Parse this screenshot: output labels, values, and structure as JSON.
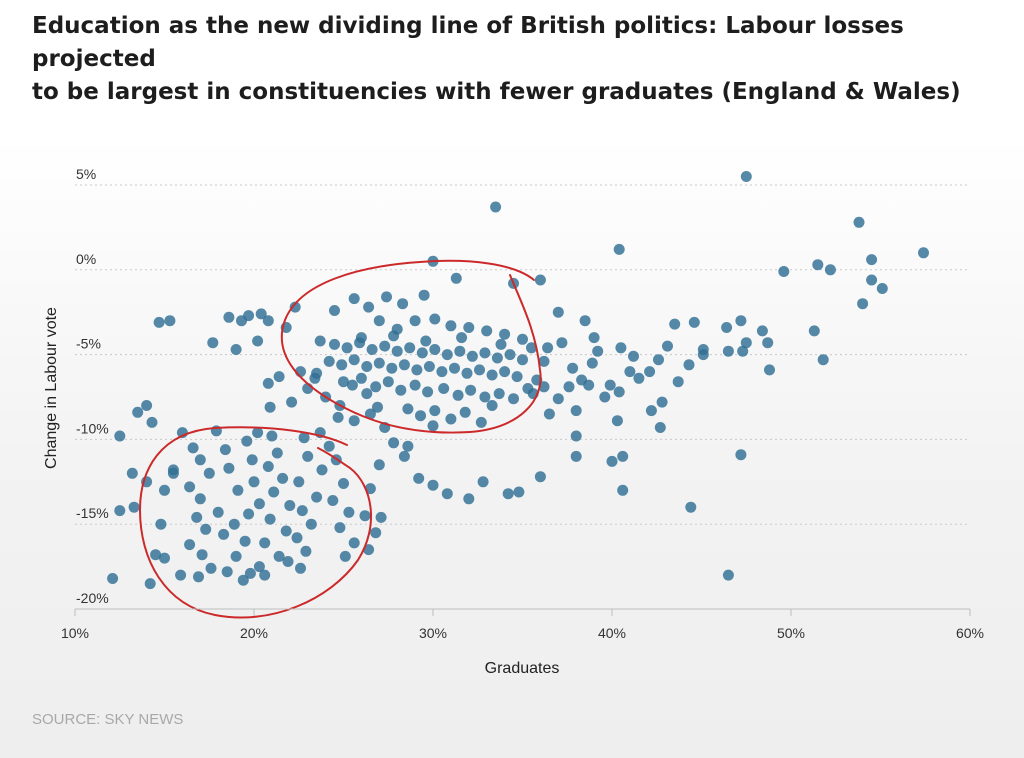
{
  "title_lines": [
    "Education as the new dividing line of British politics: Labour losses projected",
    "to be largest in constituencies with fewer graduates (England & Wales)"
  ],
  "source": "SOURCE: SKY NEWS",
  "chart_data": {
    "type": "scatter",
    "title": "Education as the new dividing line of British politics: Labour losses projected to be largest in constituencies with fewer graduates (England & Wales)",
    "xlabel": "Graduates",
    "ylabel": "Change in Labour vote",
    "xlim": [
      10,
      60
    ],
    "ylim": [
      -20,
      5
    ],
    "x_ticks": [
      "10%",
      "20%",
      "30%",
      "40%",
      "50%",
      "60%"
    ],
    "x_tick_values": [
      10,
      20,
      30,
      40,
      50,
      60
    ],
    "y_ticks": [
      "5%",
      "0%",
      "-5%",
      "-10%",
      "-15%",
      "-20%"
    ],
    "y_tick_values": [
      5,
      0,
      -5,
      -10,
      -15,
      -20
    ],
    "grid": true,
    "point_color": "#2f6f94",
    "annotation_color": "#cc2a2a",
    "points": [
      [
        47.5,
        5.5
      ],
      [
        33.5,
        3.7
      ],
      [
        53.8,
        2.8
      ],
      [
        40.4,
        1.2
      ],
      [
        57.4,
        1.0
      ],
      [
        54.5,
        0.6
      ],
      [
        51.5,
        0.3
      ],
      [
        52.2,
        0.0
      ],
      [
        49.6,
        -0.1
      ],
      [
        54.5,
        -0.6
      ],
      [
        55.1,
        -1.1
      ],
      [
        54.0,
        -2.0
      ],
      [
        30.0,
        0.5
      ],
      [
        36.0,
        -0.6
      ],
      [
        34.5,
        -0.8
      ],
      [
        12.5,
        -9.8
      ],
      [
        13.2,
        -12.0
      ],
      [
        12.5,
        -14.2
      ],
      [
        12.1,
        -18.2
      ],
      [
        14.2,
        -18.5
      ],
      [
        14.5,
        -16.8
      ],
      [
        13.3,
        -14.0
      ],
      [
        14.0,
        -12.5
      ],
      [
        15.0,
        -13.0
      ],
      [
        15.5,
        -11.8
      ],
      [
        14.8,
        -15.0
      ],
      [
        15.0,
        -17.0
      ],
      [
        15.9,
        -18.0
      ],
      [
        15.5,
        -12.0
      ],
      [
        14.7,
        -3.1
      ],
      [
        15.3,
        -3.0
      ],
      [
        13.5,
        -8.4
      ],
      [
        14.0,
        -8.0
      ],
      [
        14.3,
        -9.0
      ],
      [
        16.0,
        -9.6
      ],
      [
        16.6,
        -10.5
      ],
      [
        17.0,
        -11.2
      ],
      [
        17.5,
        -12.0
      ],
      [
        16.4,
        -12.8
      ],
      [
        17.0,
        -13.5
      ],
      [
        18.0,
        -14.3
      ],
      [
        16.8,
        -14.6
      ],
      [
        17.3,
        -15.3
      ],
      [
        18.3,
        -15.6
      ],
      [
        16.4,
        -16.2
      ],
      [
        17.1,
        -16.8
      ],
      [
        17.6,
        -17.6
      ],
      [
        16.9,
        -18.1
      ],
      [
        18.5,
        -17.8
      ],
      [
        19.4,
        -18.3
      ],
      [
        19.8,
        -17.9
      ],
      [
        19.0,
        -16.9
      ],
      [
        19.5,
        -16.0
      ],
      [
        18.9,
        -15.0
      ],
      [
        19.7,
        -14.4
      ],
      [
        20.3,
        -13.8
      ],
      [
        19.1,
        -13.0
      ],
      [
        20.0,
        -12.5
      ],
      [
        18.6,
        -11.7
      ],
      [
        19.9,
        -11.2
      ],
      [
        18.4,
        -10.6
      ],
      [
        19.6,
        -10.1
      ],
      [
        20.2,
        -9.6
      ],
      [
        17.9,
        -9.5
      ],
      [
        21.0,
        -9.8
      ],
      [
        21.3,
        -10.8
      ],
      [
        20.8,
        -11.6
      ],
      [
        21.6,
        -12.3
      ],
      [
        21.1,
        -13.1
      ],
      [
        22.0,
        -13.9
      ],
      [
        20.9,
        -14.7
      ],
      [
        21.8,
        -15.4
      ],
      [
        20.6,
        -16.1
      ],
      [
        21.4,
        -16.9
      ],
      [
        20.3,
        -17.5
      ],
      [
        21.9,
        -17.2
      ],
      [
        20.6,
        -18.0
      ],
      [
        22.6,
        -17.6
      ],
      [
        22.9,
        -16.6
      ],
      [
        22.4,
        -15.8
      ],
      [
        23.2,
        -15.0
      ],
      [
        22.7,
        -14.2
      ],
      [
        23.5,
        -13.4
      ],
      [
        22.5,
        -12.5
      ],
      [
        23.8,
        -11.8
      ],
      [
        23.0,
        -11.0
      ],
      [
        24.2,
        -10.4
      ],
      [
        22.8,
        -9.9
      ],
      [
        23.7,
        -9.6
      ],
      [
        24.6,
        -11.2
      ],
      [
        25.0,
        -12.6
      ],
      [
        24.4,
        -13.6
      ],
      [
        25.3,
        -14.3
      ],
      [
        24.8,
        -15.2
      ],
      [
        25.6,
        -16.1
      ],
      [
        25.1,
        -16.9
      ],
      [
        26.4,
        -16.5
      ],
      [
        26.8,
        -15.5
      ],
      [
        26.2,
        -14.5
      ],
      [
        27.1,
        -14.6
      ],
      [
        26.5,
        -12.9
      ],
      [
        17.7,
        -4.3
      ],
      [
        18.6,
        -2.8
      ],
      [
        19.3,
        -3.0
      ],
      [
        19.7,
        -2.7
      ],
      [
        20.4,
        -2.6
      ],
      [
        20.8,
        -3.0
      ],
      [
        20.2,
        -4.2
      ],
      [
        19.0,
        -4.7
      ],
      [
        21.8,
        -3.4
      ],
      [
        22.3,
        -2.2
      ],
      [
        21.4,
        -6.3
      ],
      [
        20.8,
        -6.7
      ],
      [
        22.6,
        -6.0
      ],
      [
        23.4,
        -6.4
      ],
      [
        23.0,
        -7.0
      ],
      [
        22.1,
        -7.8
      ],
      [
        20.9,
        -8.1
      ],
      [
        24.0,
        -7.5
      ],
      [
        24.8,
        -8.0
      ],
      [
        25.5,
        -6.8
      ],
      [
        26.3,
        -7.3
      ],
      [
        26.9,
        -8.1
      ],
      [
        27.3,
        -9.3
      ],
      [
        27.8,
        -10.2
      ],
      [
        28.4,
        -11.0
      ],
      [
        27.0,
        -11.5
      ],
      [
        29.2,
        -12.3
      ],
      [
        30.0,
        -12.7
      ],
      [
        30.8,
        -13.2
      ],
      [
        32.0,
        -13.5
      ],
      [
        32.8,
        -12.5
      ],
      [
        34.2,
        -13.2
      ],
      [
        34.8,
        -13.1
      ],
      [
        28.6,
        -10.4
      ],
      [
        33.3,
        -8.0
      ],
      [
        24.5,
        -2.4
      ],
      [
        25.6,
        -1.7
      ],
      [
        26.4,
        -2.2
      ],
      [
        27.4,
        -1.6
      ],
      [
        28.3,
        -2.0
      ],
      [
        29.5,
        -1.5
      ],
      [
        31.3,
        -0.5
      ],
      [
        27.0,
        -3.0
      ],
      [
        28.0,
        -3.5
      ],
      [
        29.0,
        -3.0
      ],
      [
        30.1,
        -2.9
      ],
      [
        31.0,
        -3.3
      ],
      [
        32.0,
        -3.4
      ],
      [
        33.0,
        -3.6
      ],
      [
        34.0,
        -3.8
      ],
      [
        35.0,
        -4.1
      ],
      [
        23.7,
        -4.2
      ],
      [
        24.5,
        -4.4
      ],
      [
        25.2,
        -4.6
      ],
      [
        25.9,
        -4.3
      ],
      [
        26.6,
        -4.7
      ],
      [
        27.3,
        -4.5
      ],
      [
        28.0,
        -4.8
      ],
      [
        28.7,
        -4.6
      ],
      [
        29.4,
        -4.9
      ],
      [
        30.1,
        -4.7
      ],
      [
        30.8,
        -5.0
      ],
      [
        31.5,
        -4.8
      ],
      [
        32.2,
        -5.1
      ],
      [
        32.9,
        -4.9
      ],
      [
        33.6,
        -5.2
      ],
      [
        34.3,
        -5.0
      ],
      [
        35.0,
        -5.3
      ],
      [
        24.2,
        -5.4
      ],
      [
        24.9,
        -5.6
      ],
      [
        25.6,
        -5.3
      ],
      [
        26.3,
        -5.7
      ],
      [
        27.0,
        -5.5
      ],
      [
        27.7,
        -5.8
      ],
      [
        28.4,
        -5.6
      ],
      [
        29.1,
        -5.9
      ],
      [
        29.8,
        -5.7
      ],
      [
        30.5,
        -6.0
      ],
      [
        31.2,
        -5.8
      ],
      [
        31.9,
        -6.1
      ],
      [
        32.6,
        -5.9
      ],
      [
        33.3,
        -6.2
      ],
      [
        34.0,
        -6.0
      ],
      [
        34.7,
        -6.3
      ],
      [
        23.5,
        -6.1
      ],
      [
        25.0,
        -6.6
      ],
      [
        26.0,
        -6.4
      ],
      [
        26.8,
        -6.9
      ],
      [
        27.5,
        -6.6
      ],
      [
        28.2,
        -7.1
      ],
      [
        29.0,
        -6.8
      ],
      [
        29.7,
        -7.2
      ],
      [
        30.6,
        -7.0
      ],
      [
        31.4,
        -7.4
      ],
      [
        32.1,
        -7.1
      ],
      [
        32.9,
        -7.5
      ],
      [
        33.7,
        -7.3
      ],
      [
        34.5,
        -7.6
      ],
      [
        35.3,
        -7.0
      ],
      [
        28.6,
        -8.2
      ],
      [
        29.3,
        -8.6
      ],
      [
        30.1,
        -8.3
      ],
      [
        31.0,
        -8.8
      ],
      [
        31.8,
        -8.4
      ],
      [
        32.7,
        -9.0
      ],
      [
        26.5,
        -8.5
      ],
      [
        25.6,
        -8.9
      ],
      [
        24.7,
        -8.7
      ],
      [
        30.0,
        -9.2
      ],
      [
        26.0,
        -4.0
      ],
      [
        27.8,
        -3.9
      ],
      [
        29.6,
        -4.2
      ],
      [
        31.6,
        -4.0
      ],
      [
        33.8,
        -4.4
      ],
      [
        35.5,
        -4.6
      ],
      [
        36.2,
        -5.4
      ],
      [
        35.8,
        -6.5
      ],
      [
        35.6,
        -7.3
      ],
      [
        36.2,
        -6.9
      ],
      [
        36.5,
        -8.5
      ],
      [
        37.0,
        -7.6
      ],
      [
        36.4,
        -4.6
      ],
      [
        37.2,
        -4.3
      ],
      [
        37.8,
        -5.8
      ],
      [
        38.3,
        -6.5
      ],
      [
        37.6,
        -6.9
      ],
      [
        38.9,
        -5.5
      ],
      [
        39.2,
        -4.8
      ],
      [
        38.0,
        -8.3
      ],
      [
        39.6,
        -7.5
      ],
      [
        38.0,
        -9.8
      ],
      [
        38.0,
        -11.0
      ],
      [
        39.9,
        -6.8
      ],
      [
        40.5,
        -4.6
      ],
      [
        41.2,
        -5.1
      ],
      [
        41.5,
        -6.4
      ],
      [
        40.4,
        -7.2
      ],
      [
        42.1,
        -6.0
      ],
      [
        42.6,
        -5.3
      ],
      [
        43.1,
        -4.5
      ],
      [
        42.8,
        -7.8
      ],
      [
        43.5,
        -3.2
      ],
      [
        44.6,
        -3.1
      ],
      [
        44.3,
        -5.6
      ],
      [
        43.7,
        -6.6
      ],
      [
        42.2,
        -8.3
      ],
      [
        42.7,
        -9.3
      ],
      [
        40.3,
        -8.9
      ],
      [
        40.0,
        -11.3
      ],
      [
        40.6,
        -11.0
      ],
      [
        40.6,
        -13.0
      ],
      [
        44.4,
        -14.0
      ],
      [
        45.1,
        -4.7
      ],
      [
        45.1,
        -5.0
      ],
      [
        46.4,
        -3.4
      ],
      [
        47.2,
        -3.0
      ],
      [
        47.5,
        -4.3
      ],
      [
        46.5,
        -4.8
      ],
      [
        47.3,
        -4.8
      ],
      [
        48.4,
        -3.6
      ],
      [
        48.7,
        -4.3
      ],
      [
        48.8,
        -5.9
      ],
      [
        47.2,
        -10.9
      ],
      [
        46.5,
        -18.0
      ],
      [
        51.3,
        -3.6
      ],
      [
        51.8,
        -5.3
      ],
      [
        36.0,
        -12.2
      ],
      [
        39.0,
        -4.0
      ],
      [
        38.5,
        -3.0
      ],
      [
        37.0,
        -2.5
      ],
      [
        38.7,
        -6.8
      ],
      [
        41.0,
        -6.0
      ]
    ]
  }
}
